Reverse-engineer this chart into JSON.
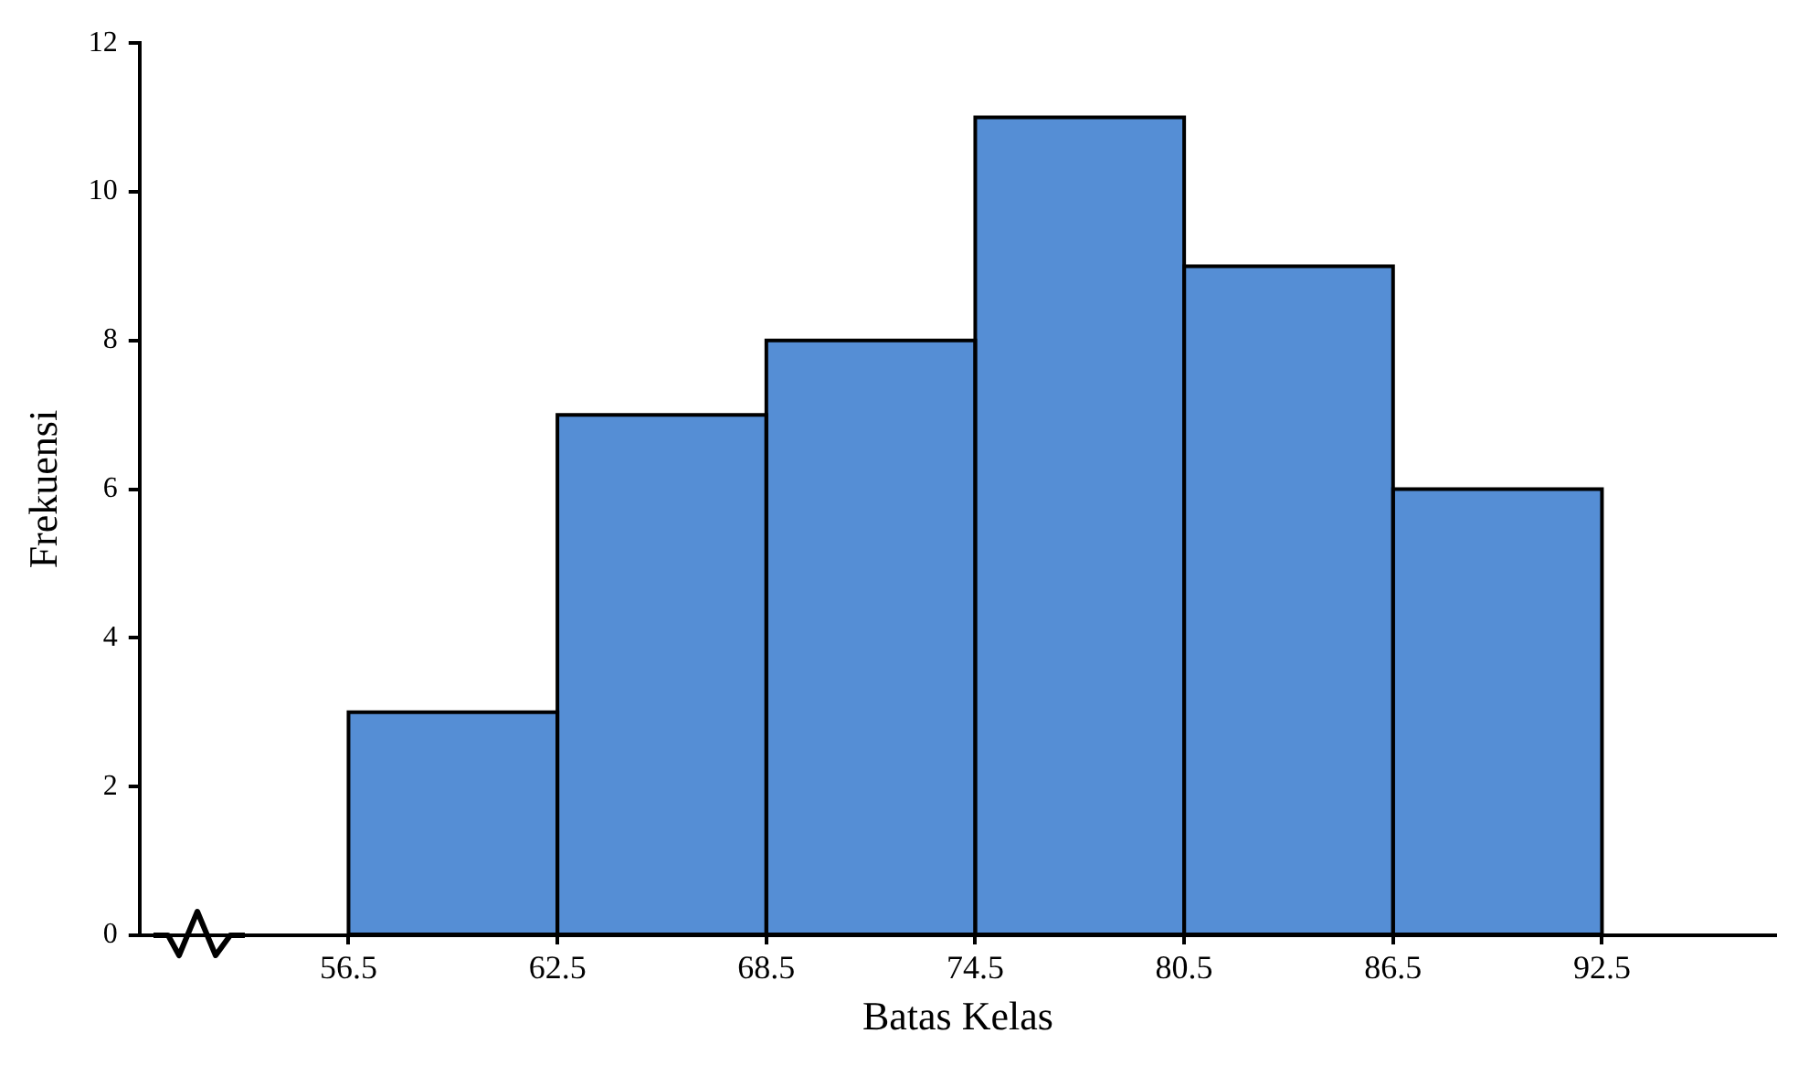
{
  "chart_data": {
    "type": "histogram",
    "xlabel": "Batas Kelas",
    "ylabel": "Frekuensi",
    "bins": [
      56.5,
      62.5,
      68.5,
      74.5,
      80.5,
      86.5,
      92.5
    ],
    "values": [
      3,
      7,
      8,
      11,
      9,
      6
    ],
    "color": "#558ed5",
    "xlim": [
      50.5,
      97.5
    ],
    "xticks": [
      56.5,
      62.5,
      68.5,
      74.5,
      80.5,
      86.5,
      92.5
    ],
    "ylim": [
      0,
      12
    ],
    "yticks": [
      0,
      2,
      4,
      6,
      8,
      10,
      12
    ],
    "grid": false
  }
}
